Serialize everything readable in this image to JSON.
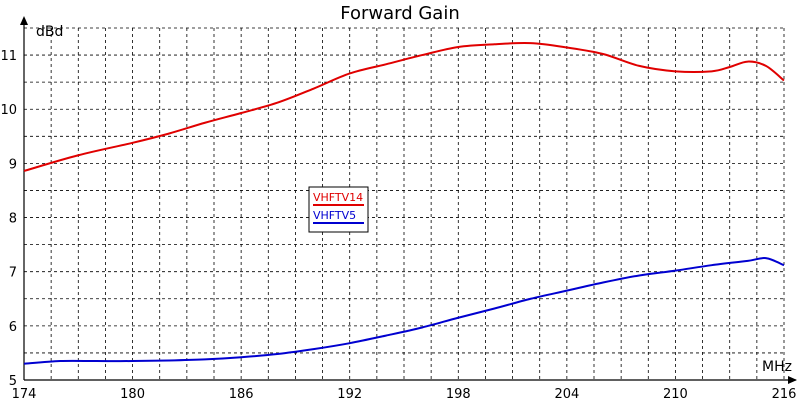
{
  "chart_data": {
    "type": "line",
    "title": "Forward Gain",
    "xlabel": "MHz",
    "ylabel": "dBd",
    "xlim": [
      174,
      216
    ],
    "ylim": [
      5,
      11.5
    ],
    "xticks": [
      174,
      180,
      186,
      192,
      198,
      204,
      210,
      216
    ],
    "yticks": [
      5,
      6,
      7,
      8,
      9,
      10,
      11
    ],
    "grid": true,
    "legend": "center-left",
    "series": [
      {
        "name": "VHFTV14",
        "color": "#e00000",
        "x": [
          174,
          177,
          180,
          182,
          184,
          186,
          188,
          190,
          192,
          194,
          196,
          198,
          200,
          202,
          204,
          206,
          208,
          210,
          212,
          213,
          214,
          215,
          216
        ],
        "y": [
          8.86,
          9.15,
          9.38,
          9.55,
          9.75,
          9.93,
          10.12,
          10.38,
          10.66,
          10.83,
          11.0,
          11.15,
          11.2,
          11.22,
          11.14,
          11.02,
          10.8,
          10.7,
          10.7,
          10.78,
          10.88,
          10.8,
          10.53
        ]
      },
      {
        "name": "VHFTV5",
        "color": "#0000d0",
        "x": [
          174,
          176,
          178,
          180,
          182,
          184,
          186,
          188,
          190,
          192,
          194,
          196,
          198,
          200,
          202,
          204,
          206,
          208,
          210,
          212,
          214,
          215,
          216
        ],
        "y": [
          5.3,
          5.35,
          5.35,
          5.35,
          5.36,
          5.38,
          5.42,
          5.48,
          5.57,
          5.68,
          5.82,
          5.97,
          6.15,
          6.32,
          6.5,
          6.65,
          6.8,
          6.93,
          7.02,
          7.12,
          7.2,
          7.25,
          7.12
        ]
      }
    ]
  }
}
